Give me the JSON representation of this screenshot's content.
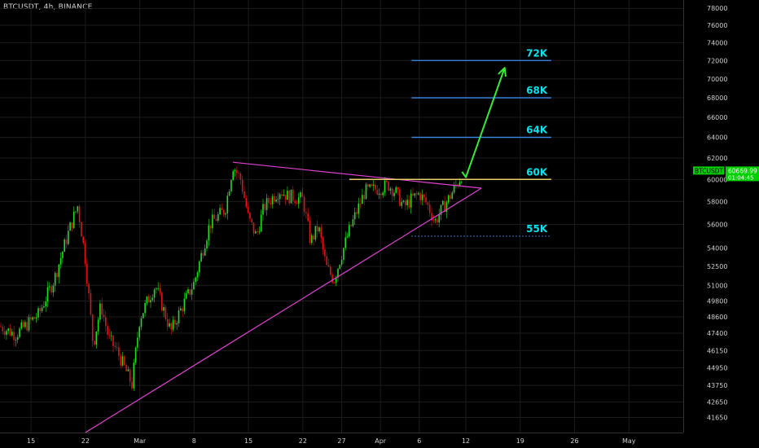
{
  "header": {
    "symbol_line": "BTCUSDT, 4h, BINANCE"
  },
  "colors": {
    "background": "#000000",
    "grid": "#1c1c1c",
    "candle_up": "#22dd22",
    "candle_down": "#e01414",
    "triangle": "#e040d0",
    "resistance": "#e6cf6a",
    "targets": "#3d8cf0",
    "target_label": "#00e5ee",
    "support_dotted": "#3d8cf0",
    "arrow": "#33ee33",
    "price_tag": "#00d000"
  },
  "chart_data": {
    "type": "candlestick",
    "title": "BTCUSDT, 4h, BINANCE",
    "xlabel": "",
    "ylabel": "",
    "grid": true,
    "y_scale": "log",
    "ylim": [
      40700,
      79000
    ],
    "x_axis": {
      "tick_labels": [
        "15",
        "22",
        "Mar",
        "8",
        "15",
        "22",
        "27",
        "Apr",
        "6",
        "12",
        "19",
        "26",
        "May"
      ],
      "tick_dates": [
        "2021-02-15",
        "2021-02-22",
        "2021-03-01",
        "2021-03-08",
        "2021-03-15",
        "2021-03-22",
        "2021-03-27",
        "2021-04-01",
        "2021-04-06",
        "2021-04-12",
        "2021-04-19",
        "2021-04-26",
        "2021-05-03"
      ],
      "range": [
        "2021-02-11",
        "2021-05-10"
      ]
    },
    "y_axis": {
      "tick_labels": [
        "78000",
        "76000",
        "74000",
        "72000",
        "70000",
        "68000",
        "66000",
        "64000",
        "62000",
        "60000",
        "58000",
        "56000",
        "54000",
        "52500",
        "51000",
        "49800",
        "48600",
        "47400",
        "46150",
        "44950",
        "43750",
        "42650",
        "41650"
      ],
      "tick_values": [
        78000,
        76000,
        74000,
        72000,
        70000,
        68000,
        66000,
        64000,
        62000,
        60000,
        58000,
        56000,
        54000,
        52500,
        51000,
        49800,
        48600,
        47400,
        46150,
        44950,
        43750,
        42650,
        41650
      ]
    },
    "price_path": [
      {
        "t": "2021-02-11",
        "p": 47900
      },
      {
        "t": "2021-02-13",
        "p": 47300
      },
      {
        "t": "2021-02-16",
        "p": 48800
      },
      {
        "t": "2021-02-18",
        "p": 51500
      },
      {
        "t": "2021-02-20",
        "p": 55700
      },
      {
        "t": "2021-02-21",
        "p": 57600
      },
      {
        "t": "2021-02-22",
        "p": 53000
      },
      {
        "t": "2021-02-23",
        "p": 46500
      },
      {
        "t": "2021-02-24",
        "p": 49500
      },
      {
        "t": "2021-02-25",
        "p": 47000
      },
      {
        "t": "2021-02-26",
        "p": 46200
      },
      {
        "t": "2021-02-28",
        "p": 43800
      },
      {
        "t": "2021-03-01",
        "p": 48500
      },
      {
        "t": "2021-03-02",
        "p": 49800
      },
      {
        "t": "2021-03-03",
        "p": 51000
      },
      {
        "t": "2021-03-05",
        "p": 47500
      },
      {
        "t": "2021-03-06",
        "p": 48800
      },
      {
        "t": "2021-03-08",
        "p": 51200
      },
      {
        "t": "2021-03-10",
        "p": 56000
      },
      {
        "t": "2021-03-12",
        "p": 57300
      },
      {
        "t": "2021-03-13",
        "p": 61300
      },
      {
        "t": "2021-03-14",
        "p": 60000
      },
      {
        "t": "2021-03-15",
        "p": 56500
      },
      {
        "t": "2021-03-16",
        "p": 55000
      },
      {
        "t": "2021-03-17",
        "p": 57500
      },
      {
        "t": "2021-03-18",
        "p": 58300
      },
      {
        "t": "2021-03-19",
        "p": 59000
      },
      {
        "t": "2021-03-20",
        "p": 58500
      },
      {
        "t": "2021-03-22",
        "p": 58200
      },
      {
        "t": "2021-03-23",
        "p": 54500
      },
      {
        "t": "2021-03-24",
        "p": 55800
      },
      {
        "t": "2021-03-25",
        "p": 52500
      },
      {
        "t": "2021-03-26",
        "p": 51400
      },
      {
        "t": "2021-03-27",
        "p": 53500
      },
      {
        "t": "2021-03-28",
        "p": 55500
      },
      {
        "t": "2021-03-29",
        "p": 57200
      },
      {
        "t": "2021-03-30",
        "p": 58900
      },
      {
        "t": "2021-04-01",
        "p": 59200
      },
      {
        "t": "2021-04-02",
        "p": 59500
      },
      {
        "t": "2021-04-03",
        "p": 58800
      },
      {
        "t": "2021-04-04",
        "p": 57500
      },
      {
        "t": "2021-04-05",
        "p": 58200
      },
      {
        "t": "2021-04-06",
        "p": 58700
      },
      {
        "t": "2021-04-07",
        "p": 57800
      },
      {
        "t": "2021-04-08",
        "p": 56200
      },
      {
        "t": "2021-04-09",
        "p": 57400
      },
      {
        "t": "2021-04-10",
        "p": 58500
      },
      {
        "t": "2021-04-11",
        "p": 59800
      },
      {
        "t": "2021-04-11T16:00",
        "p": 60670
      }
    ],
    "drawings": {
      "triangle_upper": {
        "from": {
          "t": "2021-03-13",
          "p": 61600
        },
        "to": {
          "t": "2021-04-14",
          "p": 59200
        }
      },
      "triangle_lower": {
        "from": {
          "t": "2021-02-22",
          "p": 40700
        },
        "to": {
          "t": "2021-04-14",
          "p": 59200
        }
      },
      "resistance_line": {
        "price": 60000,
        "from": "2021-03-28",
        "to": "2021-04-23"
      },
      "support_line": {
        "price": 55000,
        "from": "2021-04-05",
        "to": "2021-04-23",
        "style": "dotted"
      },
      "target_lines": [
        {
          "label": "72K",
          "price": 72000
        },
        {
          "label": "68K",
          "price": 68000
        },
        {
          "label": "64K",
          "price": 64000
        }
      ],
      "level_labels": [
        {
          "label": "72K",
          "price": 72000
        },
        {
          "label": "68K",
          "price": 68000
        },
        {
          "label": "64K",
          "price": 64000
        },
        {
          "label": "60K",
          "price": 60000
        },
        {
          "label": "55K",
          "price": 55000
        }
      ],
      "arrow_path": [
        {
          "t": "2021-04-11T12:00",
          "p": 60700
        },
        {
          "t": "2021-04-12T00:00",
          "p": 60200
        },
        {
          "t": "2021-04-17",
          "p": 71200
        }
      ]
    },
    "last_price_tag": {
      "symbol": "BTCUSDT",
      "price": "60669.99",
      "countdown": "01:04:45"
    }
  }
}
